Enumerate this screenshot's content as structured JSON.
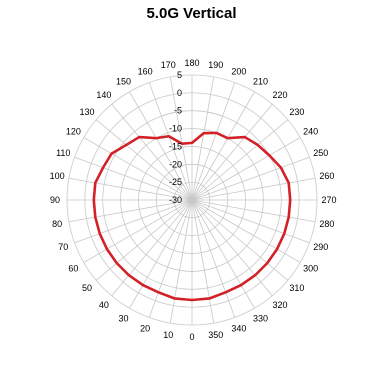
{
  "chart_data": {
    "type": "polar-line",
    "title": "5.0G Vertical",
    "angle_ticks": [
      "0",
      "10",
      "20",
      "30",
      "40",
      "50",
      "60",
      "70",
      "80",
      "90",
      "100",
      "110",
      "120",
      "130",
      "140",
      "150",
      "160",
      "170",
      "180",
      "190",
      "200",
      "210",
      "220",
      "230",
      "240",
      "250",
      "260",
      "270",
      "280",
      "290",
      "300",
      "310",
      "320",
      "330",
      "340",
      "350"
    ],
    "angle_direction": "clockwise",
    "zero_position": "bottom",
    "radial_ticks": [
      "5",
      "0",
      "-5",
      "-10",
      "-15",
      "-20",
      "-25",
      "-30"
    ],
    "radial_range": [
      -30,
      5
    ],
    "radial_step": 5,
    "grid": true,
    "series": [
      {
        "color": "#d42027",
        "angles": [
          0,
          10,
          20,
          30,
          40,
          50,
          60,
          70,
          80,
          90,
          100,
          110,
          120,
          130,
          140,
          150,
          160,
          170,
          180,
          190,
          200,
          210,
          220,
          230,
          240,
          250,
          260,
          270,
          280,
          290,
          300,
          310,
          320,
          330,
          340,
          350
        ],
        "values": [
          -2,
          -2,
          -2.5,
          -2.5,
          -2.5,
          -2.5,
          -2.5,
          -2.5,
          -2.5,
          -2.5,
          -2.5,
          -3.5,
          -4,
          -6,
          -7,
          -10,
          -11,
          -14,
          -14,
          -11,
          -10,
          -10,
          -7,
          -6,
          -5,
          -3.5,
          -2.5,
          -2.5,
          -2.5,
          -2.5,
          -2.5,
          -2.5,
          -2.5,
          -2.5,
          -2.5,
          -2
        ]
      }
    ]
  }
}
